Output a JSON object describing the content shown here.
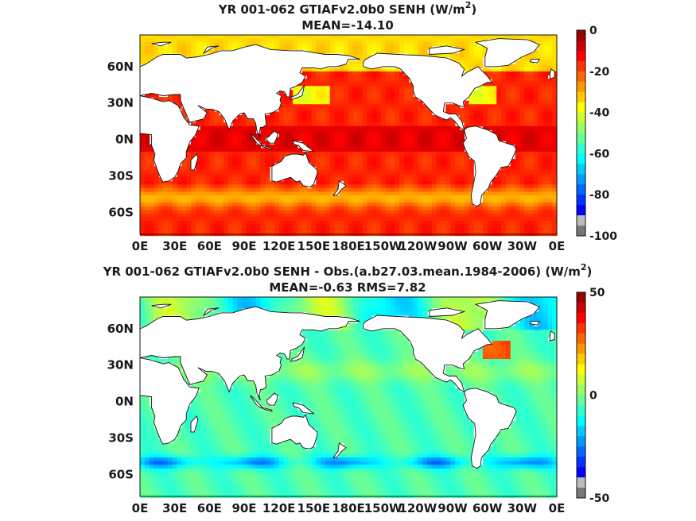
{
  "chart_data": [
    {
      "type": "heatmap",
      "title": "YR 001-062 GTIAFv2.0b0  SENH (W/m",
      "title_superscript": "2",
      "title_suffix": ")",
      "subtitle": "MEAN=-14.10",
      "xticks": [
        "0E",
        "30E",
        "60E",
        "90E",
        "120E",
        "150E",
        "180E",
        "150W",
        "120W",
        "90W",
        "60W",
        "30W",
        "0E"
      ],
      "yticks": [
        "60N",
        "30N",
        "0N",
        "30S",
        "60S"
      ],
      "xlim": [
        0,
        360
      ],
      "ylim": [
        -78,
        86
      ],
      "colorbar": {
        "min": -100,
        "max": 0,
        "ticks": [
          "0",
          "-20",
          "-40",
          "-60",
          "-80",
          "-100"
        ],
        "colormap": "jet"
      },
      "field_summary": {
        "mean": -14.1
      }
    },
    {
      "type": "heatmap",
      "title": "YR 001-062 GTIAFv2.0b0 SENH - Obs.(a.b27.03.mean.1984-2006) (W/m",
      "title_superscript": "2",
      "title_suffix": ")",
      "subtitle": "MEAN=-0.63 RMS=7.82",
      "xticks": [
        "0E",
        "30E",
        "60E",
        "90E",
        "120E",
        "150E",
        "180E",
        "150W",
        "120W",
        "90W",
        "60W",
        "30W",
        "0E"
      ],
      "yticks": [
        "60N",
        "30N",
        "0N",
        "30S",
        "60S"
      ],
      "xlim": [
        0,
        360
      ],
      "ylim": [
        -78,
        86
      ],
      "colorbar": {
        "min": -50,
        "max": 50,
        "ticks": [
          "50",
          "0",
          "-50"
        ],
        "colormap": "jet"
      },
      "field_summary": {
        "mean": -0.63,
        "rms": 7.82
      }
    }
  ]
}
